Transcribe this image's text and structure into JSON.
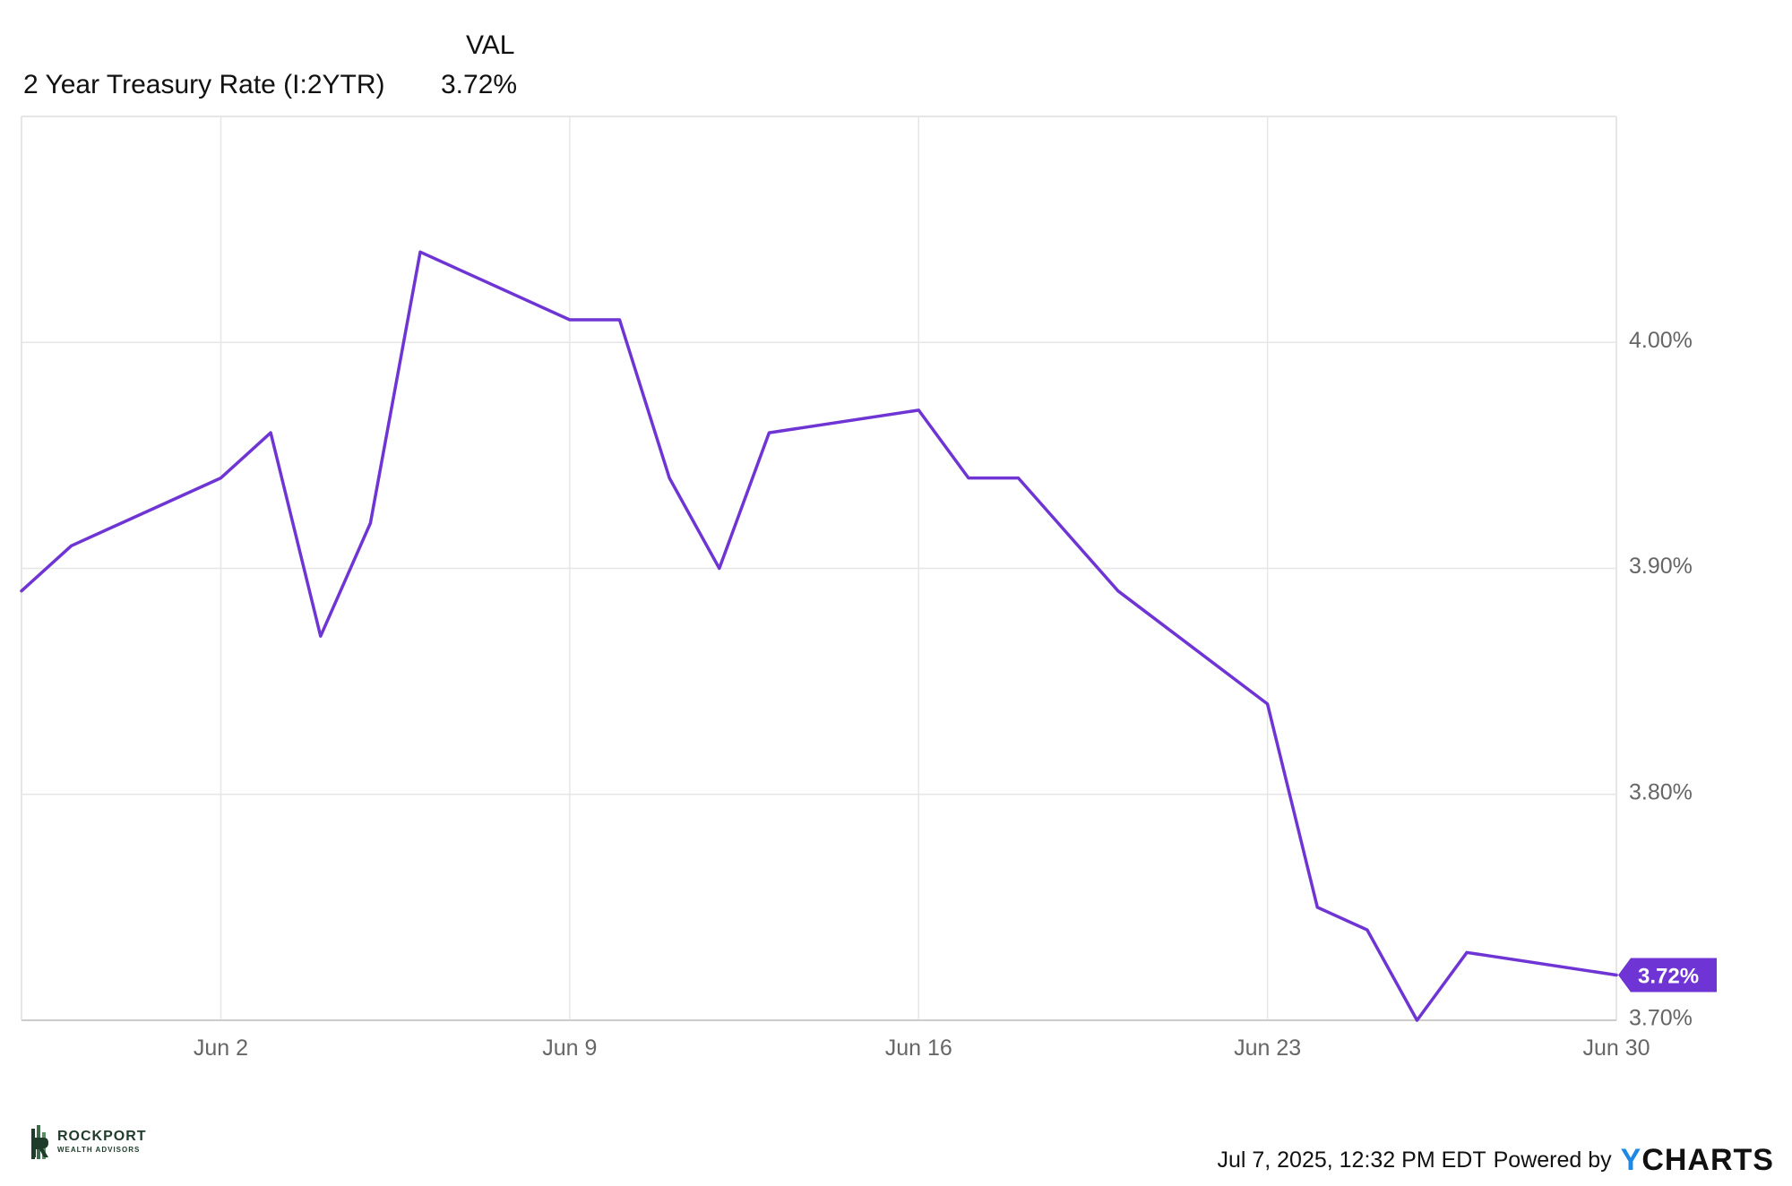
{
  "legend": {
    "header": "VAL",
    "series_name": "2 Year Treasury Rate (I:2YTR)",
    "series_value": "3.72%"
  },
  "footer": {
    "timestamp": "Jul 7, 2025, 12:32 PM EDT",
    "powered_by": "Powered by",
    "brand_y": "Y",
    "brand_rest": "CHARTS"
  },
  "watermark": {
    "name": "ROCKPORT",
    "subtitle": "WEALTH ADVISORS"
  },
  "colors": {
    "series": "#6f35d4",
    "grid": "#e6e6e6",
    "tick_text": "#666666"
  },
  "chart_data": {
    "type": "line",
    "title": "",
    "xlabel": "",
    "ylabel": "",
    "x_start": "May 29",
    "x_end": "Jun 30",
    "x_ticks": [
      {
        "label": "Jun 2",
        "day": 4
      },
      {
        "label": "Jun 9",
        "day": 11
      },
      {
        "label": "Jun 16",
        "day": 18
      },
      {
        "label": "Jun 23",
        "day": 25
      },
      {
        "label": "Jun 30",
        "day": 32
      }
    ],
    "y_ticks": [
      {
        "label": "4.00%",
        "value": 4.0
      },
      {
        "label": "3.90%",
        "value": 3.9
      },
      {
        "label": "3.80%",
        "value": 3.8
      },
      {
        "label": "3.70%",
        "value": 3.7
      }
    ],
    "ylim": [
      3.7,
      4.1
    ],
    "grid": true,
    "series": [
      {
        "name": "2 Year Treasury Rate (I:2YTR)",
        "dates": [
          "May 29",
          "May 30",
          "Jun 2",
          "Jun 3",
          "Jun 4",
          "Jun 5",
          "Jun 6",
          "Jun 9",
          "Jun 10",
          "Jun 11",
          "Jun 12",
          "Jun 13",
          "Jun 16",
          "Jun 17",
          "Jun 18",
          "Jun 20",
          "Jun 23",
          "Jun 24",
          "Jun 25",
          "Jun 26",
          "Jun 27",
          "Jun 30"
        ],
        "x": [
          0,
          1,
          4,
          5,
          6,
          7,
          8,
          11,
          12,
          13,
          14,
          15,
          18,
          19,
          20,
          22,
          25,
          26,
          27,
          28,
          29,
          32
        ],
        "values": [
          3.89,
          3.91,
          3.94,
          3.96,
          3.87,
          3.92,
          4.04,
          4.01,
          4.01,
          3.94,
          3.9,
          3.96,
          3.97,
          3.94,
          3.94,
          3.89,
          3.84,
          3.75,
          3.74,
          3.7,
          3.73,
          3.72
        ]
      }
    ],
    "last_value_label": "3.72%"
  }
}
